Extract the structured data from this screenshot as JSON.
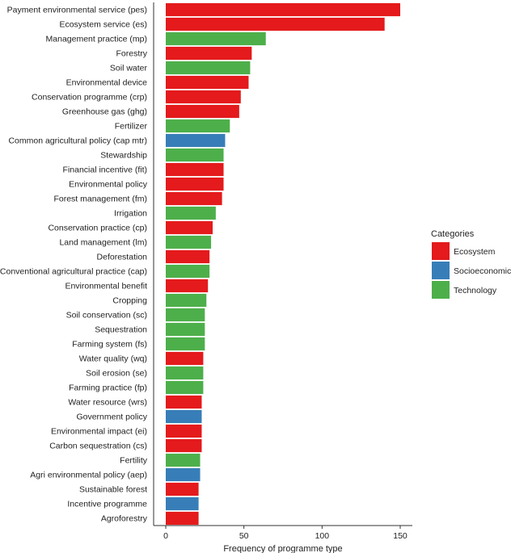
{
  "chart_data": {
    "type": "bar",
    "orientation": "horizontal",
    "xlabel": "Frequency of programme type",
    "ylabel": "",
    "xlim": [
      0,
      157
    ],
    "xticks": [
      0,
      50,
      100,
      150
    ],
    "legend": {
      "title": "Categories",
      "position": "right",
      "entries": [
        {
          "name": "Ecosystem",
          "color": "#e41a1c"
        },
        {
          "name": "Socioeconomic",
          "color": "#377eb8"
        },
        {
          "name": "Technology",
          "color": "#4daf4a"
        }
      ]
    },
    "bars": [
      {
        "label": "Payment environmental service (pes)",
        "value": 150,
        "category": "Ecosystem"
      },
      {
        "label": "Ecosystem service (es)",
        "value": 140,
        "category": "Ecosystem"
      },
      {
        "label": "Management practice (mp)",
        "value": 64,
        "category": "Technology"
      },
      {
        "label": "Forestry",
        "value": 55,
        "category": "Ecosystem"
      },
      {
        "label": "Soil water",
        "value": 54,
        "category": "Technology"
      },
      {
        "label": "Environmental device",
        "value": 53,
        "category": "Ecosystem"
      },
      {
        "label": "Conservation programme (crp)",
        "value": 48,
        "category": "Ecosystem"
      },
      {
        "label": "Greenhouse gas (ghg)",
        "value": 47,
        "category": "Ecosystem"
      },
      {
        "label": "Fertilizer",
        "value": 41,
        "category": "Technology"
      },
      {
        "label": "Common agricultural policy (cap mtr)",
        "value": 38,
        "category": "Socioeconomic"
      },
      {
        "label": "Stewardship",
        "value": 37,
        "category": "Technology"
      },
      {
        "label": "Financial incentive (fit)",
        "value": 37,
        "category": "Ecosystem"
      },
      {
        "label": "Environmental policy",
        "value": 37,
        "category": "Ecosystem"
      },
      {
        "label": "Forest management (fm)",
        "value": 36,
        "category": "Ecosystem"
      },
      {
        "label": "Irrigation",
        "value": 32,
        "category": "Technology"
      },
      {
        "label": "Conservation practice (cp)",
        "value": 30,
        "category": "Ecosystem"
      },
      {
        "label": "Land management (lm)",
        "value": 29,
        "category": "Technology"
      },
      {
        "label": "Deforestation",
        "value": 28,
        "category": "Ecosystem"
      },
      {
        "label": "Conventional agricultural practice (cap)",
        "value": 28,
        "category": "Technology"
      },
      {
        "label": "Environmental benefit",
        "value": 27,
        "category": "Ecosystem"
      },
      {
        "label": "Cropping",
        "value": 26,
        "category": "Technology"
      },
      {
        "label": "Soil conservation (sc)",
        "value": 25,
        "category": "Technology"
      },
      {
        "label": "Sequestration",
        "value": 25,
        "category": "Technology"
      },
      {
        "label": "Farming system (fs)",
        "value": 25,
        "category": "Technology"
      },
      {
        "label": "Water quality (wq)",
        "value": 24,
        "category": "Ecosystem"
      },
      {
        "label": "Soil erosion (se)",
        "value": 24,
        "category": "Technology"
      },
      {
        "label": "Farming practice (fp)",
        "value": 24,
        "category": "Technology"
      },
      {
        "label": "Water resource (wrs)",
        "value": 23,
        "category": "Ecosystem"
      },
      {
        "label": "Government policy",
        "value": 23,
        "category": "Socioeconomic"
      },
      {
        "label": "Environmental impact (ei)",
        "value": 23,
        "category": "Ecosystem"
      },
      {
        "label": "Carbon sequestration (cs)",
        "value": 23,
        "category": "Ecosystem"
      },
      {
        "label": "Fertility",
        "value": 22,
        "category": "Technology"
      },
      {
        "label": "Agri environmental policy (aep)",
        "value": 22,
        "category": "Socioeconomic"
      },
      {
        "label": "Sustainable forest",
        "value": 21,
        "category": "Ecosystem"
      },
      {
        "label": "Incentive programme",
        "value": 21,
        "category": "Socioeconomic"
      },
      {
        "label": "Agroforestry",
        "value": 21,
        "category": "Ecosystem"
      }
    ]
  }
}
